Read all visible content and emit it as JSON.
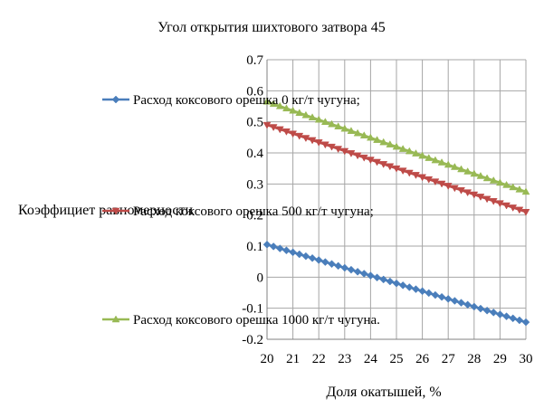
{
  "chart_data": {
    "type": "line",
    "title": "Угол открытия шихтового затвора 45",
    "xlabel": "Доля окатышей, %",
    "ylabel": "Коэффициет равномерности",
    "x": [
      20,
      21,
      22,
      23,
      24,
      25,
      26,
      27,
      28,
      29,
      30
    ],
    "xlim": [
      20,
      30
    ],
    "ylim": [
      -0.2,
      0.7
    ],
    "x_ticks": [
      "20",
      "21",
      "22",
      "23",
      "24",
      "25",
      "26",
      "27",
      "28",
      "29",
      "30"
    ],
    "y_ticks": [
      "0.7",
      "0.6",
      "0.5",
      "0.4",
      "0.3",
      "0.2",
      "0.1",
      "0",
      "-0.1",
      "-0.2"
    ],
    "grid": true,
    "legend_position": "inside-left",
    "series": [
      {
        "name": "Расход коксового орешка 0 кг/т чугуна;",
        "color": "#4a7ebb",
        "marker": "diamond",
        "values": [
          0.105,
          0.08,
          0.055,
          0.03,
          0.005,
          -0.02,
          -0.045,
          -0.07,
          -0.095,
          -0.12,
          -0.145
        ]
      },
      {
        "name": "Расход коксового орешка 500 кг/т чугуна;",
        "color": "#be4b48",
        "marker": "triangle-down",
        "values": [
          0.49,
          0.462,
          0.434,
          0.406,
          0.378,
          0.35,
          0.322,
          0.294,
          0.266,
          0.238,
          0.21
        ]
      },
      {
        "name": "Расход коксового орешка 1000 кг/т чугуна.",
        "color": "#98b954",
        "marker": "triangle-up",
        "values": [
          0.565,
          0.536,
          0.507,
          0.478,
          0.449,
          0.42,
          0.391,
          0.362,
          0.333,
          0.304,
          0.275
        ]
      }
    ]
  }
}
